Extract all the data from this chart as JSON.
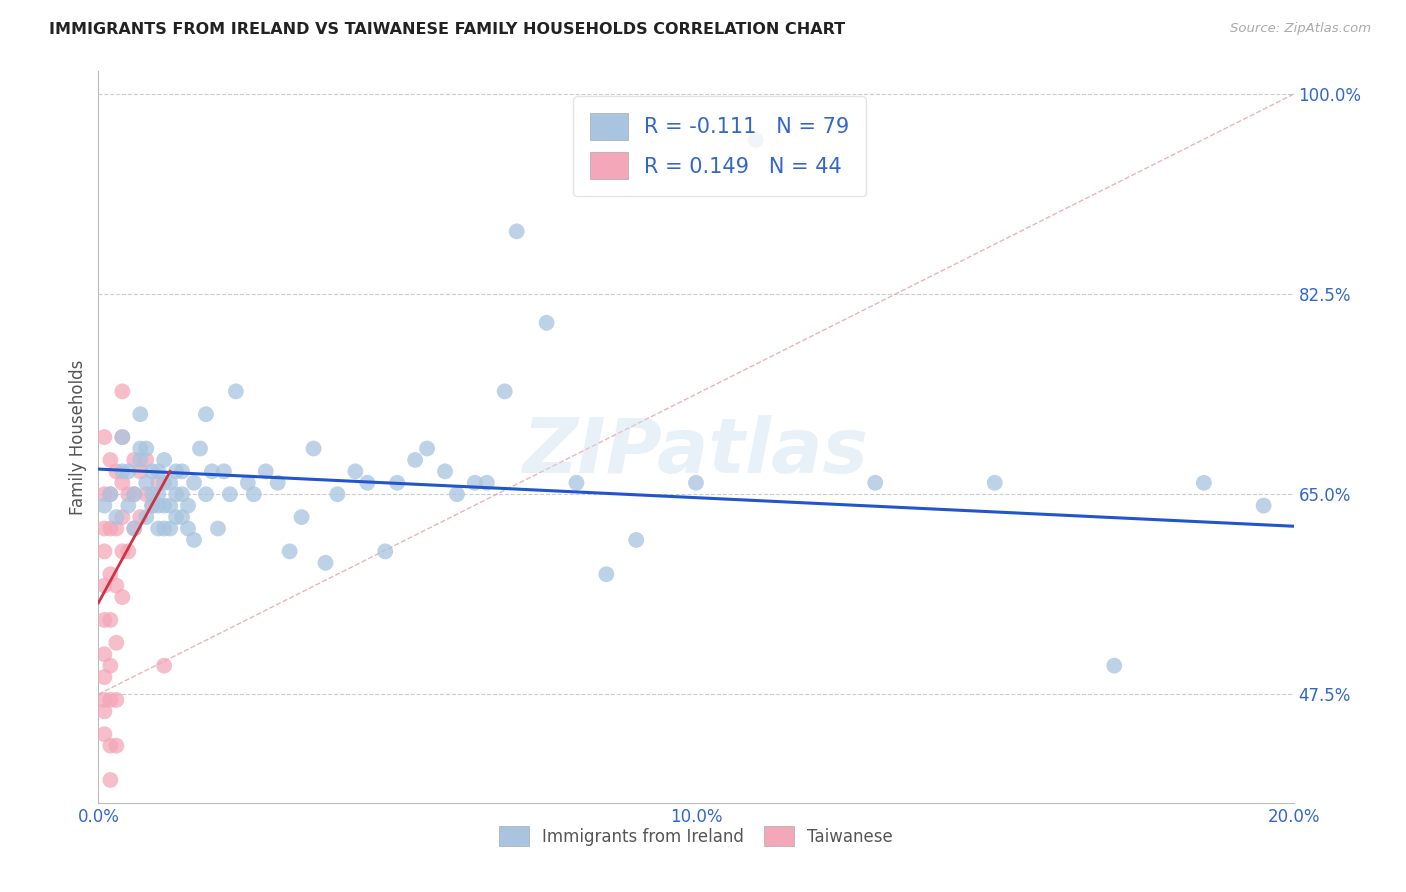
{
  "title": "IMMIGRANTS FROM IRELAND VS TAIWANESE FAMILY HOUSEHOLDS CORRELATION CHART",
  "source": "Source: ZipAtlas.com",
  "ylabel": "Family Households",
  "xlim": [
    0.0,
    0.2
  ],
  "ylim": [
    0.38,
    1.02
  ],
  "yticks": [
    0.475,
    0.65,
    0.825,
    1.0
  ],
  "ytick_labels": [
    "47.5%",
    "65.0%",
    "82.5%",
    "100.0%"
  ],
  "xticks": [
    0.0,
    0.05,
    0.1,
    0.15,
    0.2
  ],
  "xtick_labels": [
    "0.0%",
    "",
    "10.0%",
    "",
    "20.0%"
  ],
  "legend_label1": "Immigrants from Ireland",
  "legend_label2": "Taiwanese",
  "R1": "-0.111",
  "N1": "79",
  "R2": "0.149",
  "N2": "44",
  "color_ireland": "#a8c4e0",
  "color_taiwan": "#f4a7b9",
  "trendline_ireland_color": "#2255cc",
  "trendline_taiwan_color": "#cc3344",
  "watermark": "ZIPatlas",
  "background_color": "#ffffff",
  "ireland_x": [
    0.001,
    0.002,
    0.003,
    0.004,
    0.004,
    0.005,
    0.005,
    0.006,
    0.006,
    0.007,
    0.007,
    0.007,
    0.008,
    0.008,
    0.008,
    0.009,
    0.009,
    0.009,
    0.01,
    0.01,
    0.01,
    0.01,
    0.011,
    0.011,
    0.011,
    0.011,
    0.012,
    0.012,
    0.012,
    0.013,
    0.013,
    0.013,
    0.014,
    0.014,
    0.014,
    0.015,
    0.015,
    0.016,
    0.016,
    0.017,
    0.018,
    0.018,
    0.019,
    0.02,
    0.021,
    0.022,
    0.023,
    0.025,
    0.026,
    0.028,
    0.03,
    0.032,
    0.034,
    0.036,
    0.038,
    0.04,
    0.043,
    0.045,
    0.048,
    0.05,
    0.053,
    0.055,
    0.058,
    0.06,
    0.063,
    0.065,
    0.068,
    0.07,
    0.075,
    0.08,
    0.085,
    0.09,
    0.1,
    0.11,
    0.13,
    0.15,
    0.17,
    0.185,
    0.195
  ],
  "ireland_y": [
    0.64,
    0.65,
    0.63,
    0.67,
    0.7,
    0.64,
    0.67,
    0.62,
    0.65,
    0.68,
    0.69,
    0.72,
    0.63,
    0.66,
    0.69,
    0.64,
    0.65,
    0.67,
    0.62,
    0.64,
    0.65,
    0.67,
    0.62,
    0.64,
    0.66,
    0.68,
    0.62,
    0.64,
    0.66,
    0.63,
    0.65,
    0.67,
    0.63,
    0.65,
    0.67,
    0.62,
    0.64,
    0.61,
    0.66,
    0.69,
    0.72,
    0.65,
    0.67,
    0.62,
    0.67,
    0.65,
    0.74,
    0.66,
    0.65,
    0.67,
    0.66,
    0.6,
    0.63,
    0.69,
    0.59,
    0.65,
    0.67,
    0.66,
    0.6,
    0.66,
    0.68,
    0.69,
    0.67,
    0.65,
    0.66,
    0.66,
    0.74,
    0.88,
    0.8,
    0.66,
    0.58,
    0.61,
    0.66,
    0.96,
    0.66,
    0.66,
    0.5,
    0.66,
    0.64
  ],
  "taiwan_x": [
    0.001,
    0.001,
    0.001,
    0.001,
    0.001,
    0.001,
    0.001,
    0.001,
    0.001,
    0.001,
    0.001,
    0.002,
    0.002,
    0.002,
    0.002,
    0.002,
    0.002,
    0.002,
    0.002,
    0.002,
    0.003,
    0.003,
    0.003,
    0.003,
    0.003,
    0.003,
    0.004,
    0.004,
    0.004,
    0.004,
    0.004,
    0.004,
    0.005,
    0.005,
    0.006,
    0.006,
    0.006,
    0.007,
    0.007,
    0.008,
    0.008,
    0.009,
    0.01,
    0.011
  ],
  "taiwan_y": [
    0.44,
    0.46,
    0.47,
    0.49,
    0.51,
    0.54,
    0.57,
    0.6,
    0.62,
    0.65,
    0.7,
    0.4,
    0.43,
    0.47,
    0.5,
    0.54,
    0.58,
    0.62,
    0.65,
    0.68,
    0.43,
    0.47,
    0.52,
    0.57,
    0.62,
    0.67,
    0.56,
    0.6,
    0.63,
    0.66,
    0.7,
    0.74,
    0.6,
    0.65,
    0.62,
    0.65,
    0.68,
    0.63,
    0.67,
    0.65,
    0.68,
    0.64,
    0.66,
    0.5
  ],
  "ireland_trendline_x": [
    0.0,
    0.2
  ],
  "ireland_trendline_y": [
    0.672,
    0.622
  ],
  "taiwan_trendline_x": [
    0.0,
    0.012
  ],
  "taiwan_trendline_y": [
    0.555,
    0.67
  ],
  "diag_line_x": [
    0.0,
    0.2
  ],
  "diag_line_y": [
    0.475,
    1.0
  ]
}
